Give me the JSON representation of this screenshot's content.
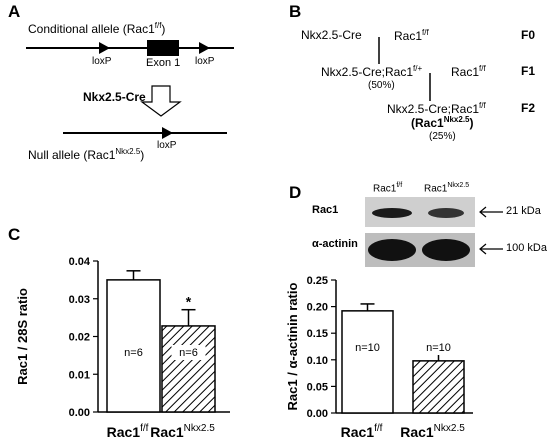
{
  "panel_a": {
    "letter": "A",
    "conditional_allele": "Conditional allele (Rac1",
    "conditional_sup": "f/f",
    "loxp": "loxP",
    "exon": "Exon 1",
    "driver": "Nkx2.5-Cre",
    "null_allele": "Null allele (Rac1",
    "null_sup": "Nkx2.5",
    "paren_close": ")"
  },
  "panel_b": {
    "letter": "B",
    "f0_left": "Nkx2.5-Cre",
    "rac1": "Rac1",
    "ff": "f/f",
    "fplus": "f/+",
    "f1_left": "Nkx2.5-Cre;Rac1",
    "f1_pct": "(50%)",
    "f2_left": "Nkx2.5-Cre;Rac1",
    "f2_sup": "Nkx2.5",
    "f2_pct": "(25%)",
    "gen0": "F0",
    "gen1": "F1",
    "gen2": "F2"
  },
  "panel_c": {
    "letter": "C"
  },
  "panel_d": {
    "letter": "D",
    "lane1": "Rac1",
    "lane1_sup": "f/f",
    "lane2": "Rac1",
    "lane2_sup": "Nkx2.5",
    "row1": "Rac1",
    "row2": "α-actinin",
    "kda1": "21 kDa",
    "kda2": "100 kDa"
  },
  "chart_data": [
    {
      "type": "bar",
      "panel": "C",
      "ylabel": "Rac1 / 28S ratio",
      "ylim": [
        0,
        0.04
      ],
      "yticks": [
        "0.00",
        "0.01",
        "0.02",
        "0.03",
        "0.04"
      ],
      "categories": [
        "Rac1",
        "Rac1"
      ],
      "category_sups": [
        "f/f",
        "Nkx2.5"
      ],
      "values": [
        0.035,
        0.0228
      ],
      "errors": [
        0.0024,
        0.0043
      ],
      "n_labels": [
        "n=6",
        "n=6"
      ],
      "significance": [
        "",
        "*"
      ],
      "fills": [
        "solid-white",
        "hatched"
      ]
    },
    {
      "type": "bar",
      "panel": "D",
      "ylabel": "Rac1 / α-actinin ratio",
      "ylim": [
        0,
        0.25
      ],
      "yticks": [
        "0.00",
        "0.05",
        "0.10",
        "0.15",
        "0.20",
        "0.25"
      ],
      "categories": [
        "Rac1",
        "Rac1"
      ],
      "category_sups": [
        "f/f",
        "Nkx2.5"
      ],
      "values": [
        0.192,
        0.098
      ],
      "errors": [
        0.013,
        0.016
      ],
      "n_labels": [
        "n=10",
        "n=10"
      ],
      "significance": [
        "",
        "***"
      ],
      "fills": [
        "solid-white",
        "hatched"
      ]
    }
  ]
}
